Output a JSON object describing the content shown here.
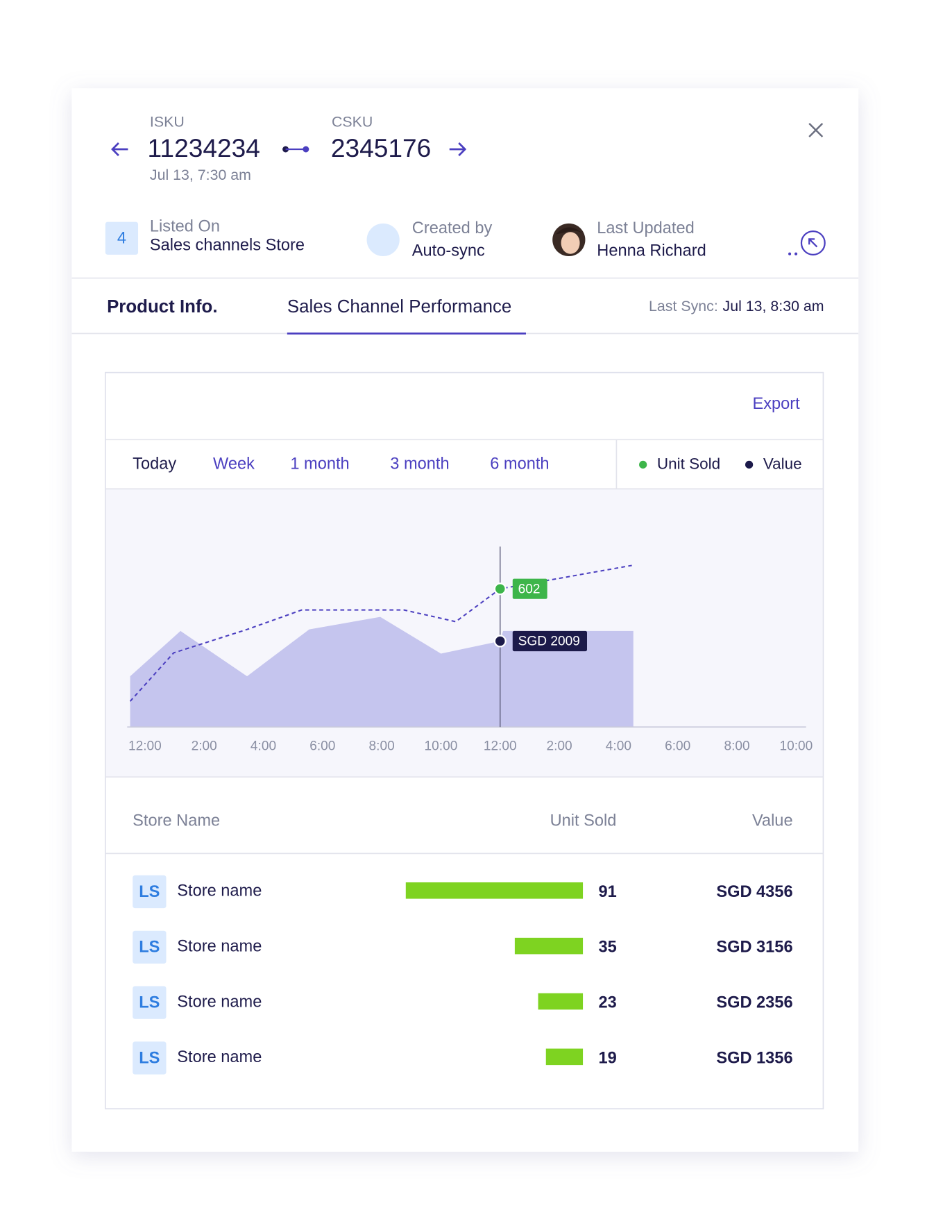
{
  "header": {
    "isku_label": "ISKU",
    "isku": "11234234",
    "date": "Jul 13, 7:30 am",
    "csku_label": "CSKU",
    "csku": "2345176"
  },
  "info": {
    "listed_count": "4",
    "listed_label": "Listed On",
    "listed_value": "Sales channels Store",
    "created_label": "Created by",
    "created_value": "Auto-sync",
    "updated_label": "Last Updated",
    "updated_value": "Henna Richard"
  },
  "tabs": {
    "items": [
      "Product  Info.",
      "Sales Channel Performance"
    ],
    "sync_label": "Last Sync:",
    "sync_value": "Jul 13, 8:30 am"
  },
  "panel": {
    "export": "Export",
    "ranges": [
      "Today",
      "Week",
      "1 month",
      "3 month",
      "6 month"
    ]
  },
  "chart": {
    "type": "area",
    "xlim": [
      -0.6,
      22.6
    ],
    "xticks": [
      {
        "value": 0,
        "label": "12:00"
      },
      {
        "value": 2,
        "label": "2:00"
      },
      {
        "value": 4,
        "label": "4:00"
      },
      {
        "value": 6,
        "label": "6:00"
      },
      {
        "value": 8,
        "label": "8:00"
      },
      {
        "value": 10,
        "label": "10:00"
      },
      {
        "value": 12,
        "label": "12:00"
      },
      {
        "value": 14,
        "label": "2:00"
      },
      {
        "value": 16,
        "label": "4:00"
      },
      {
        "value": 18,
        "label": "6:00"
      },
      {
        "value": 20,
        "label": "8:00"
      },
      {
        "value": 22,
        "label": "10:00"
      }
    ],
    "ylim": [
      0,
      990
    ],
    "y2lim": [
      0,
      5314
    ],
    "series": [
      {
        "name": "Unit Sold",
        "color": "#3db54a",
        "line_color": "#4b3fc0",
        "dashed": true,
        "x": [
          -0.5,
          0.97,
          3.45,
          5.3,
          8.75,
          10.5,
          12,
          16.45
        ],
        "values": [
          112,
          323,
          425,
          510,
          510,
          459,
          602,
          704
        ]
      },
      {
        "name": "Value",
        "color": "#1c1a4a",
        "fill": "#c5c5ee",
        "axis": "y2",
        "x": [
          -0.5,
          1.2,
          3.45,
          5.55,
          7.95,
          10,
          12,
          12.1,
          16.5
        ],
        "values": [
          1187,
          2246,
          1187,
          2283,
          2575,
          1717,
          2009,
          2246,
          2246
        ],
        "value_labels": [
          null,
          null,
          null,
          null,
          null,
          null,
          "SGD 2009",
          null,
          null
        ]
      }
    ],
    "highlight_index": 6
  },
  "table": {
    "headers": [
      "Store Name",
      "Unit Sold",
      "Value"
    ],
    "bar_color": "#7ed321",
    "rows": [
      {
        "badge": "LS",
        "name": "Store name",
        "units": 91,
        "value": "SGD 4356"
      },
      {
        "badge": "LS",
        "name": "Store name",
        "units": 35,
        "value": "SGD 3156"
      },
      {
        "badge": "LS",
        "name": "Store name",
        "units": 23,
        "value": "SGD 2356"
      },
      {
        "badge": "LS",
        "name": "Store name",
        "units": 19,
        "value": "SGD 1356"
      }
    ]
  }
}
